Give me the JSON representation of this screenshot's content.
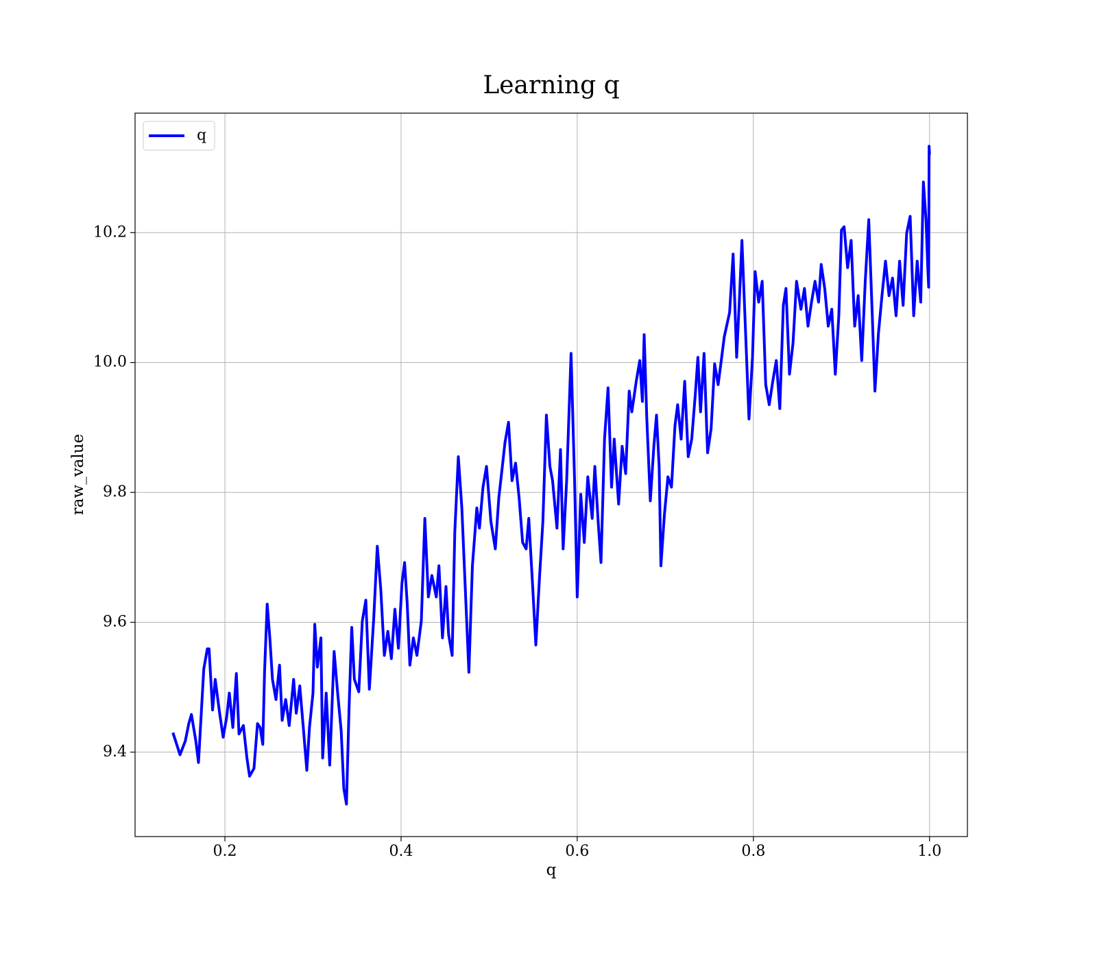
{
  "chart_data": {
    "type": "line",
    "title": "Learning q",
    "x_label": "q",
    "y_label": "raw_value",
    "x": [
      0.141,
      0.149,
      0.155,
      0.159,
      0.162,
      0.167,
      0.17,
      0.176,
      0.18,
      0.182,
      0.186,
      0.189,
      0.194,
      0.198,
      0.202,
      0.205,
      0.209,
      0.213,
      0.216,
      0.221,
      0.225,
      0.228,
      0.233,
      0.237,
      0.24,
      0.243,
      0.245,
      0.248,
      0.251,
      0.254,
      0.258,
      0.262,
      0.265,
      0.269,
      0.273,
      0.278,
      0.281,
      0.285,
      0.289,
      0.293,
      0.296,
      0.3,
      0.302,
      0.305,
      0.309,
      0.311,
      0.315,
      0.319,
      0.324,
      0.328,
      0.332,
      0.335,
      0.338,
      0.341,
      0.344,
      0.347,
      0.352,
      0.356,
      0.36,
      0.364,
      0.369,
      0.373,
      0.377,
      0.381,
      0.385,
      0.389,
      0.393,
      0.397,
      0.401,
      0.404,
      0.407,
      0.41,
      0.414,
      0.418,
      0.423,
      0.427,
      0.431,
      0.435,
      0.44,
      0.443,
      0.447,
      0.451,
      0.454,
      0.458,
      0.461,
      0.465,
      0.469,
      0.472,
      0.477,
      0.481,
      0.486,
      0.489,
      0.493,
      0.497,
      0.502,
      0.507,
      0.511,
      0.515,
      0.518,
      0.522,
      0.526,
      0.53,
      0.534,
      0.538,
      0.542,
      0.545,
      0.549,
      0.553,
      0.557,
      0.561,
      0.565,
      0.569,
      0.572,
      0.577,
      0.581,
      0.584,
      0.588,
      0.593,
      0.597,
      0.6,
      0.604,
      0.608,
      0.612,
      0.617,
      0.62,
      0.624,
      0.627,
      0.631,
      0.635,
      0.639,
      0.642,
      0.647,
      0.651,
      0.655,
      0.659,
      0.662,
      0.667,
      0.671,
      0.674,
      0.676,
      0.679,
      0.683,
      0.687,
      0.69,
      0.693,
      0.695,
      0.699,
      0.703,
      0.707,
      0.711,
      0.714,
      0.718,
      0.722,
      0.726,
      0.73,
      0.734,
      0.737,
      0.74,
      0.744,
      0.748,
      0.752,
      0.756,
      0.76,
      0.764,
      0.767,
      0.773,
      0.777,
      0.781,
      0.784,
      0.787,
      0.791,
      0.795,
      0.799,
      0.802,
      0.806,
      0.81,
      0.814,
      0.818,
      0.822,
      0.826,
      0.83,
      0.834,
      0.837,
      0.841,
      0.845,
      0.849,
      0.854,
      0.858,
      0.862,
      0.866,
      0.87,
      0.874,
      0.877,
      0.881,
      0.885,
      0.889,
      0.893,
      0.897,
      0.9,
      0.903,
      0.907,
      0.911,
      0.915,
      0.919,
      0.923,
      0.927,
      0.931,
      0.935,
      0.938,
      0.942,
      0.946,
      0.95,
      0.954,
      0.958,
      0.962,
      0.966,
      0.97,
      0.974,
      0.978,
      0.982,
      0.986,
      0.99,
      0.993,
      0.996,
      0.998,
      0.999,
      0.9995,
      1.0
    ],
    "series": [
      {
        "name": "q",
        "color": "#0000ff",
        "values": [
          9.43,
          9.396,
          9.417,
          9.444,
          9.458,
          9.417,
          9.384,
          9.528,
          9.559,
          9.559,
          9.465,
          9.512,
          9.46,
          9.423,
          9.454,
          9.491,
          9.438,
          9.521,
          9.428,
          9.441,
          9.391,
          9.363,
          9.375,
          9.444,
          9.438,
          9.412,
          9.523,
          9.628,
          9.576,
          9.512,
          9.481,
          9.534,
          9.449,
          9.481,
          9.441,
          9.512,
          9.46,
          9.502,
          9.438,
          9.372,
          9.438,
          9.491,
          9.597,
          9.531,
          9.576,
          9.391,
          9.491,
          9.38,
          9.555,
          9.491,
          9.433,
          9.344,
          9.32,
          9.47,
          9.592,
          9.512,
          9.493,
          9.602,
          9.634,
          9.497,
          9.607,
          9.717,
          9.65,
          9.549,
          9.586,
          9.544,
          9.62,
          9.56,
          9.66,
          9.692,
          9.628,
          9.534,
          9.576,
          9.549,
          9.602,
          9.76,
          9.639,
          9.672,
          9.639,
          9.687,
          9.576,
          9.655,
          9.581,
          9.549,
          9.739,
          9.855,
          9.776,
          9.681,
          9.523,
          9.687,
          9.776,
          9.745,
          9.808,
          9.84,
          9.755,
          9.713,
          9.792,
          9.84,
          9.877,
          9.908,
          9.818,
          9.845,
          9.792,
          9.723,
          9.713,
          9.76,
          9.665,
          9.565,
          9.665,
          9.755,
          9.919,
          9.84,
          9.818,
          9.745,
          9.866,
          9.713,
          9.818,
          10.014,
          9.818,
          9.639,
          9.797,
          9.723,
          9.824,
          9.76,
          9.84,
          9.75,
          9.692,
          9.882,
          9.961,
          9.808,
          9.882,
          9.782,
          9.871,
          9.829,
          9.956,
          9.924,
          9.971,
          10.003,
          9.94,
          10.043,
          9.913,
          9.787,
          9.871,
          9.919,
          9.84,
          9.687,
          9.766,
          9.824,
          9.808,
          9.903,
          9.935,
          9.882,
          9.971,
          9.855,
          9.882,
          9.95,
          10.008,
          9.924,
          10.014,
          9.861,
          9.898,
          9.998,
          9.966,
          10.008,
          10.04,
          10.077,
          10.167,
          10.008,
          10.093,
          10.188,
          10.051,
          9.913,
          10.008,
          10.14,
          10.093,
          10.125,
          9.966,
          9.935,
          9.971,
          10.003,
          9.929,
          10.088,
          10.114,
          9.982,
          10.03,
          10.125,
          10.082,
          10.114,
          10.056,
          10.093,
          10.125,
          10.093,
          10.151,
          10.114,
          10.056,
          10.082,
          9.982,
          10.072,
          10.204,
          10.209,
          10.146,
          10.188,
          10.056,
          10.103,
          10.003,
          10.125,
          10.22,
          10.072,
          9.956,
          10.045,
          10.103,
          10.156,
          10.103,
          10.13,
          10.072,
          10.156,
          10.088,
          10.199,
          10.225,
          10.072,
          10.156,
          10.093,
          10.278,
          10.22,
          10.146,
          10.116,
          10.333,
          10.32
        ]
      }
    ],
    "xlim": [
      0.098,
      1.043
    ],
    "ylim": [
      9.27,
      10.384
    ],
    "xticks": [
      0.2,
      0.4,
      0.6,
      0.8,
      {
        "value": 1,
        "label": "1.0"
      }
    ],
    "yticks": [
      9.4,
      9.6,
      9.8,
      {
        "value": 10,
        "label": "10.0"
      },
      10.2
    ],
    "grid": true,
    "legend_position": "upper left"
  }
}
